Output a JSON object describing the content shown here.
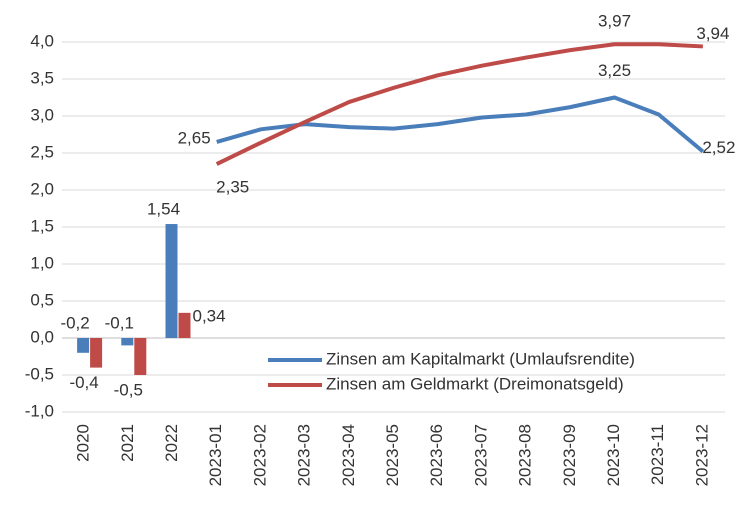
{
  "chart_data": {
    "type": "combo",
    "categories": [
      "2020",
      "2021",
      "2022",
      "2023-01",
      "2023-02",
      "2023-03",
      "2023-04",
      "2023-05",
      "2023-06",
      "2023-07",
      "2023-08",
      "2023-09",
      "2023-10",
      "2023-11",
      "2023-12"
    ],
    "series": [
      {
        "name": "Zinsen am Kapitalmarkt (Umlaufsrendite)",
        "color": "#4a7ebb",
        "type": "line",
        "values": [
          null,
          null,
          null,
          2.65,
          2.82,
          2.89,
          2.85,
          2.83,
          2.89,
          2.98,
          3.02,
          3.12,
          3.25,
          3.02,
          2.52
        ],
        "value_labels": [
          null,
          null,
          null,
          "2,65",
          null,
          null,
          null,
          null,
          null,
          null,
          null,
          null,
          "3,25",
          null,
          "2,52"
        ]
      },
      {
        "name": "Zinsen am Geldmarkt (Dreimonatsgeld)",
        "color": "#be4b48",
        "type": "line",
        "values": [
          null,
          null,
          null,
          2.35,
          2.64,
          2.92,
          3.19,
          3.38,
          3.55,
          3.68,
          3.79,
          3.89,
          3.97,
          3.97,
          3.94
        ],
        "value_labels": [
          null,
          null,
          null,
          "2,35",
          null,
          null,
          null,
          null,
          null,
          null,
          null,
          null,
          "3,97",
          null,
          "3,94"
        ]
      },
      {
        "color": "#4a7ebb",
        "type": "bar",
        "values": [
          -0.2,
          -0.1,
          1.54,
          null,
          null,
          null,
          null,
          null,
          null,
          null,
          null,
          null,
          null,
          null,
          null
        ],
        "value_labels": [
          "-0,2",
          "-0,1",
          "1,54",
          null,
          null,
          null,
          null,
          null,
          null,
          null,
          null,
          null,
          null,
          null,
          null
        ]
      },
      {
        "color": "#be4b48",
        "type": "bar",
        "values": [
          -0.4,
          -0.5,
          0.34,
          null,
          null,
          null,
          null,
          null,
          null,
          null,
          null,
          null,
          null,
          null,
          null
        ],
        "value_labels": [
          "-0,4",
          "-0,5",
          "0,34",
          null,
          null,
          null,
          null,
          null,
          null,
          null,
          null,
          null,
          null,
          null,
          null
        ]
      }
    ],
    "ylim": [
      -1.0,
      4.0
    ],
    "yticks": [
      {
        "value": -1.0,
        "label": "-1,0"
      },
      {
        "value": -0.5,
        "label": "-0,5"
      },
      {
        "value": 0.0,
        "label": "0,0"
      },
      {
        "value": 0.5,
        "label": "0,5"
      },
      {
        "value": 1.0,
        "label": "1,0"
      },
      {
        "value": 1.5,
        "label": "1,5"
      },
      {
        "value": 2.0,
        "label": "2,0"
      },
      {
        "value": 2.5,
        "label": "2,5"
      },
      {
        "value": 3.0,
        "label": "3,0"
      },
      {
        "value": 3.5,
        "label": "3,5"
      },
      {
        "value": 4.0,
        "label": "4,0"
      }
    ],
    "grid": true,
    "legend": "lower right"
  }
}
